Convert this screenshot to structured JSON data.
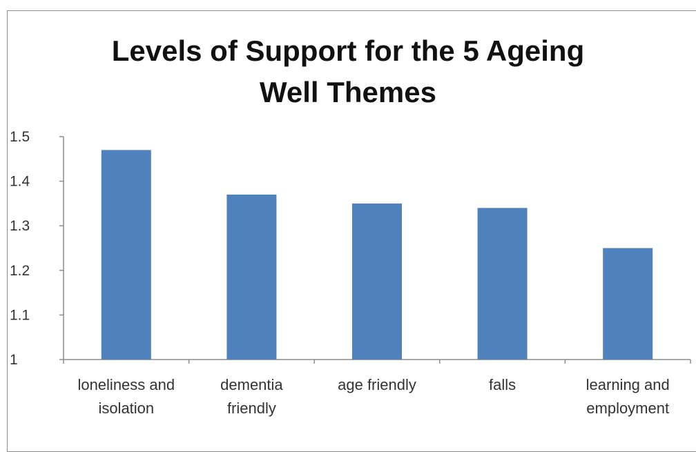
{
  "chart_data": {
    "type": "bar",
    "title_lines": [
      "Levels of Support for the 5 Ageing",
      "Well Themes"
    ],
    "categories": [
      [
        "loneliness and",
        "isolation"
      ],
      [
        "dementia",
        "friendly"
      ],
      [
        "age friendly"
      ],
      [
        "falls"
      ],
      [
        "learning and",
        "employment"
      ]
    ],
    "values": [
      1.47,
      1.37,
      1.35,
      1.34,
      1.25
    ],
    "ylim": [
      1,
      1.5
    ],
    "yticks": [
      "1",
      "1.1",
      "1.2",
      "1.3",
      "1.4",
      "1.5"
    ],
    "bar_color": "#4f81bd",
    "grid": false,
    "legend": "none"
  }
}
